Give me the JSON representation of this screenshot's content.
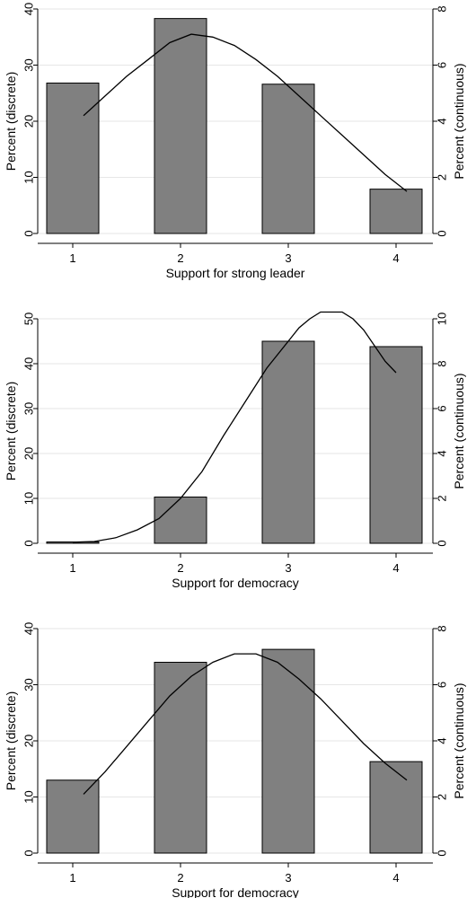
{
  "chart_data": [
    {
      "type": "bar",
      "categories": [
        "1",
        "2",
        "3",
        "4"
      ],
      "values": [
        26.8,
        38.3,
        26.6,
        7.9
      ],
      "xlabel": "Support for strong leader",
      "ylabel": "Percent (discrete)",
      "y2label": "Percent (continuous)",
      "ylim": [
        0,
        40
      ],
      "yticks": [
        0,
        10,
        20,
        30,
        40
      ],
      "y2lim": [
        0,
        8
      ],
      "y2ticks": [
        0,
        2,
        4,
        6,
        8
      ],
      "curve": {
        "type": "line",
        "axis": "right",
        "x": [
          1.1,
          1.3,
          1.5,
          1.7,
          1.9,
          2.1,
          2.3,
          2.5,
          2.7,
          2.9,
          3.1,
          3.3,
          3.5,
          3.7,
          3.9,
          4.1
        ],
        "y": [
          4.2,
          4.9,
          5.6,
          6.2,
          6.8,
          7.1,
          7.0,
          6.7,
          6.2,
          5.6,
          4.9,
          4.2,
          3.5,
          2.8,
          2.1,
          1.5
        ]
      }
    },
    {
      "type": "bar",
      "categories": [
        "1",
        "2",
        "3",
        "4"
      ],
      "values": [
        0.3,
        10.3,
        45.0,
        43.8
      ],
      "xlabel": "Support for democracy",
      "ylabel": "Percent (discrete)",
      "y2label": "Percent (continuous)",
      "ylim": [
        0,
        50
      ],
      "yticks": [
        0,
        10,
        20,
        30,
        40,
        50
      ],
      "y2lim": [
        0,
        10
      ],
      "y2ticks": [
        0,
        2,
        4,
        6,
        8,
        10
      ],
      "curve": {
        "type": "line",
        "axis": "right",
        "x": [
          1.0,
          1.2,
          1.4,
          1.6,
          1.8,
          2.0,
          2.2,
          2.4,
          2.6,
          2.8,
          3.0,
          3.1,
          3.2,
          3.3,
          3.4,
          3.5,
          3.6,
          3.7,
          3.8,
          3.9,
          4.0
        ],
        "y": [
          0.05,
          0.08,
          0.25,
          0.6,
          1.1,
          2.0,
          3.2,
          4.8,
          6.3,
          7.8,
          9.0,
          9.6,
          10.0,
          10.3,
          10.3,
          10.3,
          10.0,
          9.5,
          8.8,
          8.1,
          7.6
        ]
      }
    },
    {
      "type": "bar",
      "categories": [
        "1",
        "2",
        "3",
        "4"
      ],
      "values": [
        13.0,
        34.0,
        36.3,
        16.3
      ],
      "xlabel": "Support for democracy",
      "ylabel": "Percent (discrete)",
      "y2label": "Percent (continuous)",
      "ylim": [
        0,
        40
      ],
      "yticks": [
        0,
        10,
        20,
        30,
        40
      ],
      "y2lim": [
        0,
        8
      ],
      "y2ticks": [
        0,
        2,
        4,
        6,
        8
      ],
      "curve": {
        "type": "line",
        "axis": "right",
        "x": [
          1.1,
          1.3,
          1.5,
          1.7,
          1.9,
          2.1,
          2.3,
          2.5,
          2.7,
          2.9,
          3.1,
          3.3,
          3.5,
          3.7,
          3.9,
          4.1
        ],
        "y": [
          2.1,
          2.9,
          3.8,
          4.7,
          5.6,
          6.3,
          6.8,
          7.1,
          7.1,
          6.8,
          6.2,
          5.5,
          4.7,
          3.9,
          3.2,
          2.6
        ]
      }
    }
  ]
}
